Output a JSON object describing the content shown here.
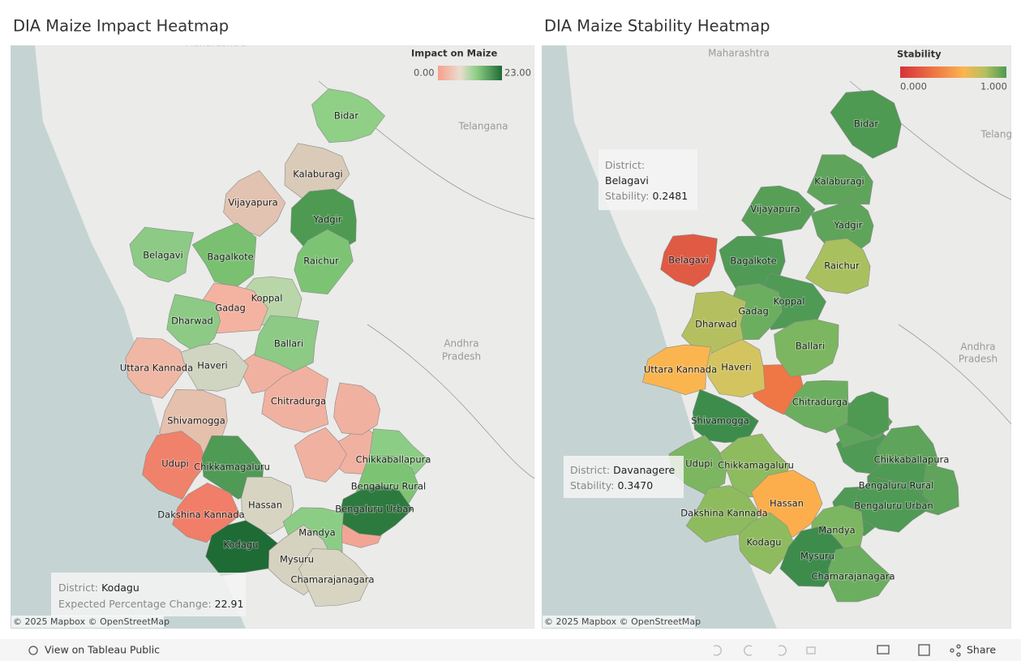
{
  "panels": [
    {
      "title": "DIA Maize Impact Heatmap",
      "legend_title": "Impact on Maize",
      "legend_min": "0.00",
      "legend_max": "23.00",
      "places": [
        "Maharashtra",
        "Telangana",
        "Andhra",
        "Pradesh"
      ],
      "districts": [
        "Bidar",
        "Kalaburagi",
        "Vijayapura",
        "Yadgir",
        "Belagavi",
        "Bagalkote",
        "Raichur",
        "Koppal",
        "Gadag",
        "Dharwad",
        "Ballari",
        "Haveri",
        "Uttara Kannada",
        "Chitradurga",
        "Shivamogga",
        "Udupi",
        "Chikkamagaluru",
        "Chikkaballapura",
        "Bengaluru Rural",
        "Bengaluru Urban",
        "Hassan",
        "Dakshina Kannada",
        "Mandya",
        "Kodagu",
        "Mysuru",
        "Chamarajanagara"
      ],
      "tooltips": [
        {
          "label": "District:",
          "value": "Kodagu",
          "metric_label": "Expected Percentage Change:",
          "metric_value": "22.91"
        }
      ],
      "attribution": "© 2025 Mapbox  © OpenStreetMap"
    },
    {
      "title": "DIA Maize Stability Heatmap",
      "legend_title": "Stability",
      "legend_min": "0.000",
      "legend_max": "1.000",
      "places": [
        "Maharashtra",
        "Telangana",
        "Andhra",
        "Pradesh"
      ],
      "districts": [
        "Bidar",
        "Kalaburagi",
        "Vijayapura",
        "Yadgir",
        "Belagavi",
        "Bagalkote",
        "Raichur",
        "Koppal",
        "Gadag",
        "Dharwad",
        "Ballari",
        "Haveri",
        "Uttara Kannada",
        "Chitradurga",
        "Shivamogga",
        "Udupi",
        "Chikkamagaluru",
        "Chikkaballapura",
        "Bengaluru Rural",
        "Bengaluru Urban",
        "Hassan",
        "Dakshina Kannada",
        "Mandya",
        "Kodagu",
        "Mysuru",
        "Chamarajanagara"
      ],
      "tooltips": [
        {
          "label": "District:",
          "value": "Belagavi",
          "metric_label": "Stability:",
          "metric_value": "0.2481"
        },
        {
          "label": "District:",
          "value": "Davanagere",
          "metric_label": "Stability:",
          "metric_value": "0.3470"
        }
      ],
      "attribution": "© 2025 Mapbox  © OpenStreetMap"
    }
  ],
  "toolbar": {
    "view_link": "View on Tableau Public",
    "share": "Share"
  }
}
